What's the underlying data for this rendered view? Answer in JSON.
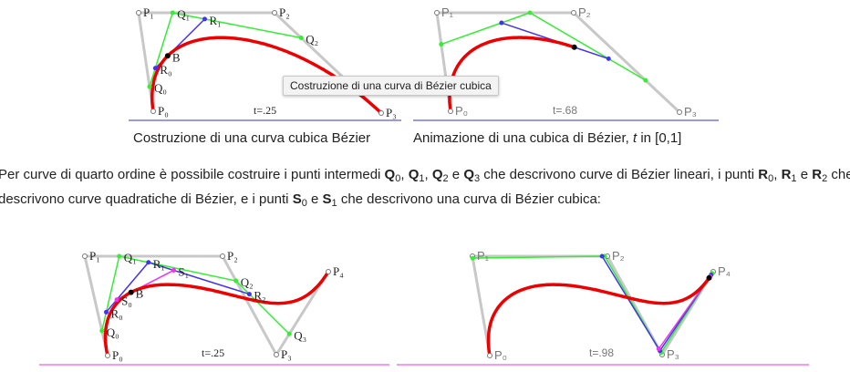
{
  "figures": [
    {
      "caption": "Costruzione di una curva cubica Bézier",
      "t_label": "t=.25",
      "labels": {
        "P0": "P₀",
        "P1": "P₁",
        "P2": "P₂",
        "P3": "P₃",
        "Q0": "Q₀",
        "Q1": "Q₁",
        "Q2": "Q₂",
        "R0": "R₀",
        "R1": "R₁",
        "B": "B"
      }
    },
    {
      "caption_main": "Animazione di una cubica di Bézier, ",
      "caption_t": "t",
      "caption_rest": " in [0,1]",
      "t_label": "t=.68",
      "labels": {
        "P0": "P₀",
        "P1": "P₁",
        "P2": "P₂",
        "P3": "P₃"
      }
    },
    {
      "t_label": "t=.25",
      "labels": {
        "P0": "P₀",
        "P1": "P₁",
        "P2": "P₂",
        "P3": "P₃",
        "P4": "P₄",
        "Q0": "Q₀",
        "Q1": "Q₁",
        "Q2": "Q₂",
        "Q3": "Q₃",
        "R0": "R₀",
        "R1": "R₁",
        "R2": "R₂",
        "S0": "S₀",
        "S1": "S₁",
        "B": "B"
      }
    },
    {
      "t_label": "t=.98",
      "labels": {
        "P0": "P₀",
        "P1": "P₁",
        "P2": "P₂",
        "P3": "P₃",
        "P4": "P₄"
      }
    }
  ],
  "tooltip": "Costruzione di una curva di Bézier cubica",
  "paragraph": {
    "t1": "Per curve di quarto ordine è possibile costruire i punti intermedi ",
    "Q": "Q",
    "s0": "0",
    "s1": "1",
    "s2": "2",
    "s3": "3",
    "comma": ", ",
    "e": " e ",
    "t2": " che descrivono curve di Bézier lineari, i punti ",
    "R": "R",
    "t3": " che descrivono curve quadratiche di Bézier, e i punti ",
    "S": "S",
    "t4": " che descrivono una curva di Bézier cubica:"
  },
  "colors": {
    "polygon": "#c8c8c8",
    "linear": "#33ee33",
    "quadratic": "#4433ee",
    "cubic": "#ee33ee",
    "curve": "#ee0000",
    "caption_rule_top": "#3333cc",
    "caption_rule_bottom": "#ee33ee"
  }
}
